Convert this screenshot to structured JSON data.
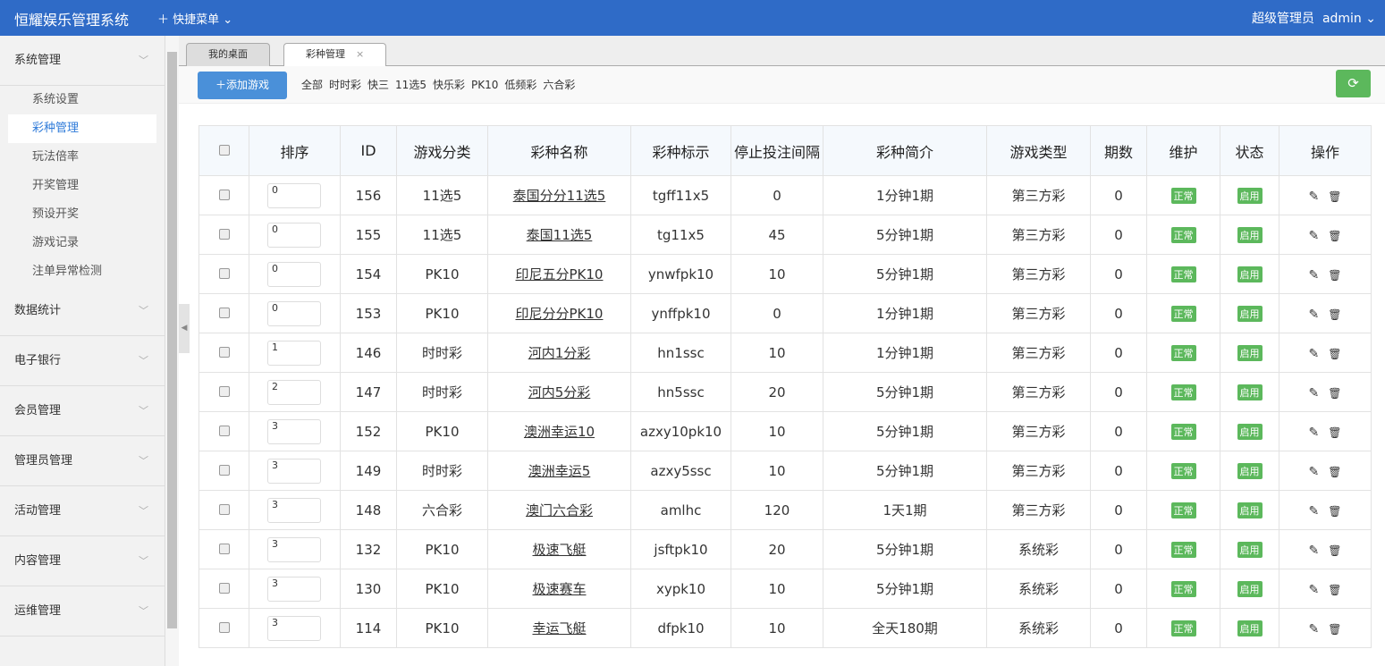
{
  "header": {
    "title": "恒耀娱乐管理系统",
    "quick_menu": "快捷菜单",
    "role": "超级管理员",
    "user": "admin"
  },
  "sidebar": {
    "groups": [
      {
        "label": "系统管理",
        "items": [
          "系统设置",
          "彩种管理",
          "玩法倍率",
          "开奖管理",
          "预设开奖",
          "游戏记录",
          "注单异常检测"
        ]
      },
      {
        "label": "数据统计"
      },
      {
        "label": "电子银行"
      },
      {
        "label": "会员管理"
      },
      {
        "label": "管理员管理"
      },
      {
        "label": "活动管理"
      },
      {
        "label": "内容管理"
      },
      {
        "label": "运维管理"
      }
    ],
    "active": "彩种管理"
  },
  "tabs": [
    {
      "label": "我的桌面"
    },
    {
      "label": "彩种管理",
      "close": "×"
    }
  ],
  "toolbar": {
    "add": "添加游戏",
    "filters": [
      "全部",
      "时时彩",
      "快三",
      "11选5",
      "快乐彩",
      "PK10",
      "低频彩",
      "六合彩"
    ]
  },
  "table": {
    "headers": [
      "排序",
      "ID",
      "游戏分类",
      "彩种名称",
      "彩种标示",
      "停止投注间隔",
      "彩种简介",
      "游戏类型",
      "期数",
      "维护",
      "状态",
      "操作"
    ],
    "rows": [
      [
        "0",
        "156",
        "11选5",
        "泰国分分11选5",
        "tgff11x5",
        "0",
        "1分钟1期",
        "第三方彩",
        "0",
        "正常",
        "启用"
      ],
      [
        "0",
        "155",
        "11选5",
        "泰国11选5",
        "tg11x5",
        "45",
        "5分钟1期",
        "第三方彩",
        "0",
        "正常",
        "启用"
      ],
      [
        "0",
        "154",
        "PK10",
        "印尼五分PK10",
        "ynwfpk10",
        "10",
        "5分钟1期",
        "第三方彩",
        "0",
        "正常",
        "启用"
      ],
      [
        "0",
        "153",
        "PK10",
        "印尼分分PK10",
        "ynffpk10",
        "0",
        "1分钟1期",
        "第三方彩",
        "0",
        "正常",
        "启用"
      ],
      [
        "1",
        "146",
        "时时彩",
        "河内1分彩",
        "hn1ssc",
        "10",
        "1分钟1期",
        "第三方彩",
        "0",
        "正常",
        "启用"
      ],
      [
        "2",
        "147",
        "时时彩",
        "河内5分彩",
        "hn5ssc",
        "20",
        "5分钟1期",
        "第三方彩",
        "0",
        "正常",
        "启用"
      ],
      [
        "3",
        "152",
        "PK10",
        "澳洲幸运10",
        "azxy10pk10",
        "10",
        "5分钟1期",
        "第三方彩",
        "0",
        "正常",
        "启用"
      ],
      [
        "3",
        "149",
        "时时彩",
        "澳洲幸运5",
        "azxy5ssc",
        "10",
        "5分钟1期",
        "第三方彩",
        "0",
        "正常",
        "启用"
      ],
      [
        "3",
        "148",
        "六合彩",
        "澳门六合彩",
        "amlhc",
        "120",
        "1天1期",
        "第三方彩",
        "0",
        "正常",
        "启用"
      ],
      [
        "3",
        "132",
        "PK10",
        "极速飞艇",
        "jsftpk10",
        "20",
        "5分钟1期",
        "系统彩",
        "0",
        "正常",
        "启用"
      ],
      [
        "3",
        "130",
        "PK10",
        "极速赛车",
        "xypk10",
        "10",
        "5分钟1期",
        "系统彩",
        "0",
        "正常",
        "启用"
      ],
      [
        "3",
        "114",
        "PK10",
        "幸运飞艇",
        "dfpk10",
        "10",
        "全天180期",
        "系统彩",
        "0",
        "正常",
        "启用"
      ]
    ]
  },
  "colors": {
    "header": "#2f6bc7",
    "primary": "#4a90d9",
    "success": "#5cb85c"
  }
}
